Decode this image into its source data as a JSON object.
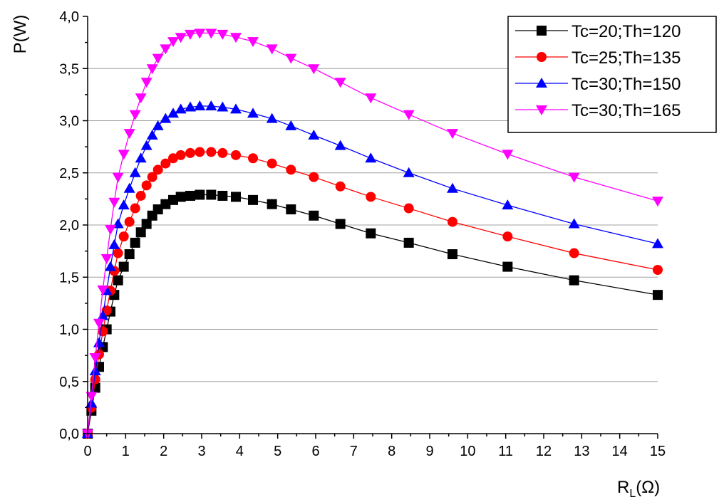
{
  "chart_data": {
    "type": "line",
    "xlabel": "R",
    "xlabel_sub": "L",
    "xlabel_unit": "(Ω)",
    "ylabel": "P(W)",
    "xlim": [
      0,
      15
    ],
    "ylim": [
      0,
      4
    ],
    "x_ticks": [
      "0",
      "1",
      "2",
      "3",
      "4",
      "5",
      "6",
      "7",
      "8",
      "9",
      "10",
      "11",
      "12",
      "13",
      "14",
      "15"
    ],
    "y_ticks": [
      "0,0",
      "0,5",
      "1,0",
      "1,5",
      "2,0",
      "2,5",
      "3,0",
      "3,5",
      "4,0"
    ],
    "grid": "horizontal",
    "legend_position": "top-right",
    "series": [
      {
        "name": "Tc=20;Th=120",
        "color": "#000000",
        "marker": "square",
        "x": [
          0,
          0.1,
          0.2,
          0.3,
          0.4,
          0.5,
          0.6,
          0.7,
          0.8,
          0.95,
          1.1,
          1.25,
          1.4,
          1.55,
          1.7,
          1.85,
          2.05,
          2.25,
          2.45,
          2.7,
          2.95,
          3.25,
          3.55,
          3.9,
          4.35,
          4.85,
          5.35,
          5.95,
          6.65,
          7.45,
          8.45,
          9.6,
          11.05,
          12.8,
          15
        ],
        "y": [
          0,
          0.22,
          0.44,
          0.64,
          0.83,
          1.0,
          1.17,
          1.33,
          1.47,
          1.6,
          1.72,
          1.83,
          1.93,
          2.01,
          2.09,
          2.15,
          2.2,
          2.24,
          2.27,
          2.28,
          2.29,
          2.29,
          2.28,
          2.27,
          2.24,
          2.2,
          2.15,
          2.09,
          2.01,
          1.92,
          1.83,
          1.72,
          1.6,
          1.47,
          1.33
        ]
      },
      {
        "name": "Tc=25;Th=135",
        "color": "#ff0000",
        "marker": "circle",
        "x": [
          0,
          0.1,
          0.2,
          0.3,
          0.4,
          0.5,
          0.6,
          0.7,
          0.8,
          0.95,
          1.1,
          1.25,
          1.4,
          1.55,
          1.7,
          1.85,
          2.05,
          2.25,
          2.45,
          2.7,
          2.95,
          3.25,
          3.55,
          3.9,
          4.35,
          4.85,
          5.35,
          5.95,
          6.65,
          7.45,
          8.45,
          9.6,
          11.05,
          12.8,
          15
        ],
        "y": [
          0,
          0.25,
          0.52,
          0.76,
          0.98,
          1.18,
          1.37,
          1.56,
          1.73,
          1.89,
          2.03,
          2.16,
          2.28,
          2.38,
          2.46,
          2.53,
          2.59,
          2.64,
          2.67,
          2.69,
          2.7,
          2.7,
          2.69,
          2.67,
          2.64,
          2.59,
          2.53,
          2.46,
          2.37,
          2.27,
          2.16,
          2.03,
          1.89,
          1.73,
          1.57
        ]
      },
      {
        "name": "Tc=30;Th=150",
        "color": "#0000ff",
        "marker": "triangle-up",
        "x": [
          0,
          0.1,
          0.2,
          0.3,
          0.4,
          0.5,
          0.6,
          0.7,
          0.8,
          0.95,
          1.1,
          1.25,
          1.4,
          1.55,
          1.7,
          1.85,
          2.05,
          2.25,
          2.45,
          2.7,
          2.95,
          3.25,
          3.55,
          3.9,
          4.35,
          4.85,
          5.35,
          5.95,
          6.65,
          7.45,
          8.45,
          9.6,
          11.05,
          12.8,
          15
        ],
        "y": [
          0,
          0.29,
          0.6,
          0.87,
          1.13,
          1.37,
          1.6,
          1.81,
          2.01,
          2.19,
          2.35,
          2.5,
          2.64,
          2.76,
          2.86,
          2.95,
          3.02,
          3.07,
          3.11,
          3.13,
          3.14,
          3.14,
          3.13,
          3.11,
          3.07,
          3.02,
          2.95,
          2.86,
          2.76,
          2.64,
          2.5,
          2.35,
          2.19,
          2.01,
          1.82
        ]
      },
      {
        "name": "Tc=30;Th=165",
        "color": "#ff00ff",
        "marker": "triangle-down",
        "x": [
          0,
          0.1,
          0.2,
          0.3,
          0.4,
          0.5,
          0.6,
          0.7,
          0.8,
          0.95,
          1.1,
          1.25,
          1.4,
          1.55,
          1.7,
          1.85,
          2.05,
          2.25,
          2.45,
          2.7,
          2.95,
          3.25,
          3.55,
          3.9,
          4.35,
          4.85,
          5.35,
          5.95,
          6.65,
          7.45,
          8.45,
          9.6,
          11.05,
          12.8,
          15
        ],
        "y": [
          0,
          0.36,
          0.73,
          1.06,
          1.38,
          1.68,
          1.96,
          2.22,
          2.46,
          2.68,
          2.88,
          3.06,
          3.22,
          3.37,
          3.5,
          3.6,
          3.69,
          3.76,
          3.8,
          3.83,
          3.84,
          3.84,
          3.83,
          3.8,
          3.76,
          3.69,
          3.6,
          3.5,
          3.37,
          3.22,
          3.06,
          2.88,
          2.68,
          2.46,
          2.23
        ]
      }
    ]
  }
}
